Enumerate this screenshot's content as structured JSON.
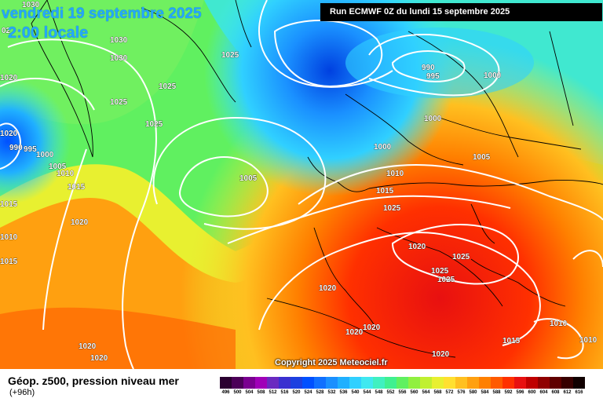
{
  "header": {
    "date": "vendredi 19 septembre 2025",
    "time": "2:00 locale",
    "run": "Run ECMWF 0Z du lundi 15 septembre 2025"
  },
  "copyright": "Copyright 2025 Meteociel.fr",
  "footer": {
    "field_title": "Géop. z500, pression niveau mer",
    "lead_time": "(+96h)"
  },
  "scale": {
    "labels": [
      "496",
      "500",
      "504",
      "508",
      "512",
      "516",
      "520",
      "524",
      "528",
      "532",
      "536",
      "540",
      "544",
      "548",
      "552",
      "556",
      "560",
      "564",
      "568",
      "572",
      "576",
      "580",
      "584",
      "588",
      "592",
      "596",
      "600",
      "604",
      "608",
      "612",
      "616"
    ],
    "colors": [
      "#2b0030",
      "#4c0058",
      "#7a0090",
      "#a000b8",
      "#6a2ac0",
      "#3a30d0",
      "#1d40e0",
      "#0050ff",
      "#1070ff",
      "#1a90ff",
      "#20b0ff",
      "#30d0ff",
      "#40e8f0",
      "#40f0c0",
      "#40f090",
      "#60f060",
      "#90f040",
      "#c0f030",
      "#e8f030",
      "#ffe030",
      "#ffc020",
      "#ffa010",
      "#ff8000",
      "#ff5a00",
      "#ff3000",
      "#e81010",
      "#c00000",
      "#900000",
      "#600000",
      "#380000",
      "#100000"
    ]
  },
  "isobars": [
    {
      "v": "1030"
    },
    {
      "v": "1030"
    },
    {
      "v": "1030"
    },
    {
      "v": "1025"
    },
    {
      "v": "1025"
    },
    {
      "v": "1025"
    },
    {
      "v": "1025"
    },
    {
      "v": "1020"
    },
    {
      "v": "1020"
    },
    {
      "v": "1015"
    },
    {
      "v": "1010"
    },
    {
      "v": "1005"
    },
    {
      "v": "1000"
    },
    {
      "v": "995"
    },
    {
      "v": "990"
    },
    {
      "v": "990"
    },
    {
      "v": "995"
    },
    {
      "v": "1000"
    },
    {
      "v": "1000"
    },
    {
      "v": "1000"
    },
    {
      "v": "1005"
    },
    {
      "v": "1005"
    },
    {
      "v": "1010"
    },
    {
      "v": "1015"
    },
    {
      "v": "1020"
    },
    {
      "v": "1025"
    },
    {
      "v": "1025"
    },
    {
      "v": "1025"
    },
    {
      "v": "1025"
    },
    {
      "v": "1020"
    },
    {
      "v": "1020"
    },
    {
      "v": "1020"
    },
    {
      "v": "1020"
    },
    {
      "v": "1015"
    },
    {
      "v": "1010"
    },
    {
      "v": "1010"
    },
    {
      "v": "1020"
    },
    {
      "v": "1020"
    },
    {
      "v": "1015"
    },
    {
      "v": "1010"
    },
    {
      "v": "1015"
    },
    {
      "v": "02"
    },
    {
      "v": "1020"
    }
  ]
}
